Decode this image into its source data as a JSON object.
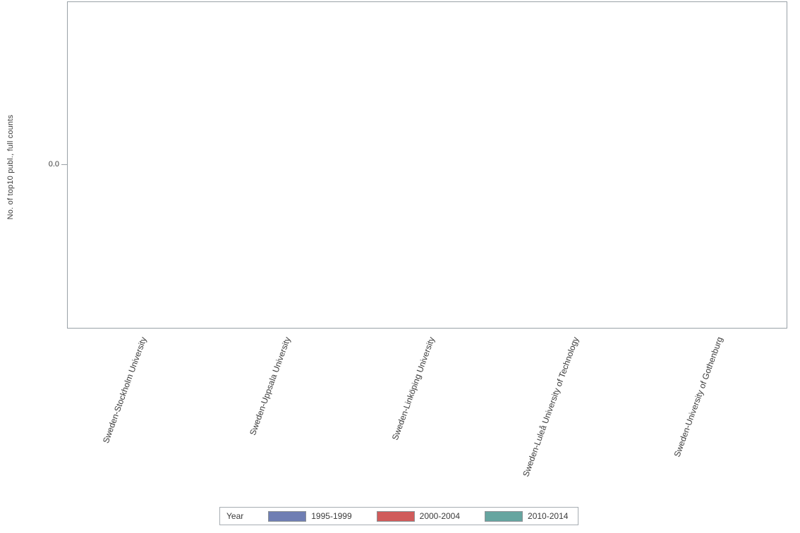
{
  "figure": {
    "background": "#ffffff",
    "plot_border_color": "#99a1a7",
    "text_color": "#3b3b3b"
  },
  "chart_data": {
    "type": "bar",
    "title": "",
    "xlabel": "",
    "ylabel": "No. of top10 publ., full counts",
    "categories": [
      "Sweden-Stockholm University",
      "Sweden-Uppsala University",
      "Sweden-Linköping University",
      "Sweden-Luleå University of Technology",
      "Sweden-University of Gothenburg"
    ],
    "series": [
      {
        "name": "1995-1999",
        "color": "#6F7EB3",
        "values": [
          0,
          0,
          0,
          0,
          0
        ]
      },
      {
        "name": "2000-2004",
        "color": "#D05B5B",
        "values": [
          0,
          0,
          0,
          0,
          0
        ]
      },
      {
        "name": "2010-2014",
        "color": "#66A5A0",
        "values": [
          0,
          0,
          0,
          0,
          0
        ]
      }
    ],
    "y_ticks": [
      "0.0"
    ],
    "y_zero_position": "middle",
    "grid": false,
    "legend_title": "Year",
    "legend_position": "bottom"
  }
}
